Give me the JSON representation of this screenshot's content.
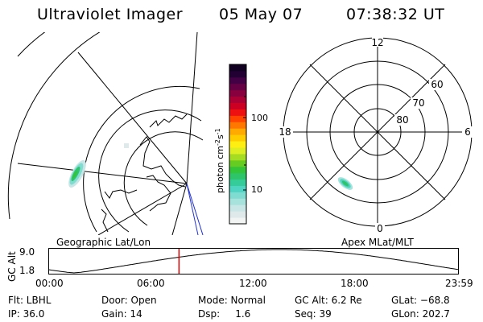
{
  "header": {
    "instrument": "Ultraviolet Imager",
    "date": "05 May 07",
    "time": "07:38:32 UT"
  },
  "left_panel": {
    "label": "Geographic Lat/Lon"
  },
  "right_panel": {
    "label": "Apex MLat/MLT",
    "mlt_labels": [
      "12",
      "18",
      "6",
      "0"
    ],
    "lat_labels": [
      "60",
      "70",
      "80"
    ]
  },
  "colorbar": {
    "unit_label": "photon cm",
    "unit_exp1": "-2",
    "unit_mid": "s",
    "unit_exp2": "-1",
    "tick_100": "100",
    "tick_10": "10",
    "colors": [
      "#f2f4f4",
      "#dfe9ea",
      "#c9e6e6",
      "#a8e2dc",
      "#7fdcd0",
      "#4fd4c4",
      "#35cc9a",
      "#2ec46a",
      "#33c43a",
      "#66cc22",
      "#a6dd22",
      "#ddee22",
      "#ffee11",
      "#ffcc00",
      "#ffaa00",
      "#ff7700",
      "#ff4400",
      "#ee1111",
      "#cc0022",
      "#aa0033",
      "#88003e",
      "#660044",
      "#440044",
      "#220033",
      "#110022"
    ]
  },
  "timeline": {
    "axis_label": "GC Alt",
    "y_top": "9.0",
    "y_bottom": "1.8",
    "ticks": [
      "00:00",
      "06:00",
      "12:00",
      "18:00",
      "23:59"
    ],
    "current_hour": 7.64
  },
  "info": {
    "filter": "Flt: LBHL",
    "ip": "IP: 36.0",
    "door": "Door: Open",
    "gain": "Gain: 14",
    "mode": "Mode: Normal",
    "dsp": "Dsp:     1.6",
    "gc_alt": "GC Alt: 6.2 Re",
    "seq": "Seq: 39",
    "glat": "GLat: −68.8",
    "glon": "GLon: 202.7"
  }
}
